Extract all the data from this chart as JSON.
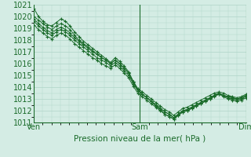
{
  "title": "",
  "xlabel": "Pression niveau de la mer( hPa )",
  "ylabel": "",
  "bg_color": "#d4ece4",
  "grid_color": "#b0d4c8",
  "line_color": "#1a6b2a",
  "x_ticks_labels": [
    "Ven",
    "Sam",
    "Dim"
  ],
  "x_ticks_pos": [
    0,
    48,
    96
  ],
  "ylim": [
    1011,
    1021
  ],
  "xlim": [
    0,
    96
  ],
  "yticks": [
    1011,
    1012,
    1013,
    1014,
    1015,
    1016,
    1017,
    1018,
    1019,
    1020,
    1021
  ],
  "series": [
    [
      1020.7,
      1020.0,
      1019.6,
      1019.3,
      1019.2,
      1019.5,
      1019.8,
      1019.6,
      1019.2,
      1018.7,
      1018.3,
      1017.9,
      1017.6,
      1017.3,
      1017.0,
      1016.7,
      1016.4,
      1016.1,
      1016.5,
      1016.2,
      1015.8,
      1015.3,
      1014.5,
      1013.8,
      1013.4,
      1013.1,
      1012.8,
      1012.4,
      1012.1,
      1011.7,
      1011.5,
      1011.3,
      1011.6,
      1011.9,
      1012.0,
      1012.2,
      1012.4,
      1012.6,
      1012.8,
      1013.0,
      1013.3,
      1013.4,
      1013.3,
      1013.2,
      1013.1,
      1013.0,
      1013.1,
      1013.3
    ],
    [
      1020.0,
      1019.7,
      1019.4,
      1019.1,
      1018.9,
      1019.2,
      1019.4,
      1019.2,
      1018.9,
      1018.4,
      1018.0,
      1017.7,
      1017.4,
      1017.1,
      1016.8,
      1016.5,
      1016.3,
      1016.0,
      1016.3,
      1016.0,
      1015.6,
      1015.2,
      1014.4,
      1013.8,
      1013.4,
      1013.1,
      1012.8,
      1012.5,
      1012.2,
      1011.9,
      1011.7,
      1011.4,
      1011.7,
      1012.0,
      1012.1,
      1012.3,
      1012.5,
      1012.7,
      1012.9,
      1013.1,
      1013.3,
      1013.5,
      1013.3,
      1013.2,
      1013.1,
      1013.0,
      1013.1,
      1013.3
    ],
    [
      1019.6,
      1019.2,
      1018.9,
      1018.6,
      1018.4,
      1018.7,
      1018.9,
      1018.7,
      1018.4,
      1018.0,
      1017.7,
      1017.4,
      1017.1,
      1016.8,
      1016.5,
      1016.3,
      1016.1,
      1015.8,
      1016.1,
      1015.8,
      1015.4,
      1015.0,
      1014.3,
      1013.7,
      1013.4,
      1013.1,
      1012.8,
      1012.5,
      1012.2,
      1011.9,
      1011.7,
      1011.4,
      1011.7,
      1012.0,
      1012.1,
      1012.3,
      1012.5,
      1012.7,
      1012.9,
      1013.1,
      1013.3,
      1013.5,
      1013.3,
      1013.1,
      1013.0,
      1012.9,
      1013.0,
      1013.2
    ],
    [
      1019.3,
      1018.9,
      1018.6,
      1018.3,
      1018.1,
      1018.4,
      1018.6,
      1018.4,
      1018.1,
      1017.7,
      1017.4,
      1017.1,
      1016.8,
      1016.5,
      1016.3,
      1016.0,
      1015.8,
      1015.6,
      1015.9,
      1015.6,
      1015.2,
      1014.8,
      1014.1,
      1013.5,
      1013.2,
      1012.9,
      1012.6,
      1012.3,
      1012.0,
      1011.7,
      1011.5,
      1011.3,
      1011.6,
      1011.9,
      1012.0,
      1012.2,
      1012.4,
      1012.6,
      1012.8,
      1013.0,
      1013.2,
      1013.4,
      1013.2,
      1013.0,
      1012.9,
      1012.8,
      1012.9,
      1013.1
    ],
    [
      1019.8,
      1019.4,
      1019.1,
      1018.8,
      1018.6,
      1018.9,
      1019.1,
      1018.9,
      1018.6,
      1018.2,
      1017.9,
      1017.6,
      1017.3,
      1017.0,
      1016.8,
      1016.5,
      1016.3,
      1016.0,
      1016.3,
      1016.0,
      1015.6,
      1015.2,
      1014.5,
      1013.9,
      1013.6,
      1013.3,
      1013.0,
      1012.7,
      1012.4,
      1012.1,
      1011.9,
      1011.6,
      1011.9,
      1012.2,
      1012.3,
      1012.5,
      1012.7,
      1012.9,
      1013.1,
      1013.3,
      1013.5,
      1013.6,
      1013.5,
      1013.3,
      1013.2,
      1013.1,
      1013.2,
      1013.4
    ]
  ]
}
